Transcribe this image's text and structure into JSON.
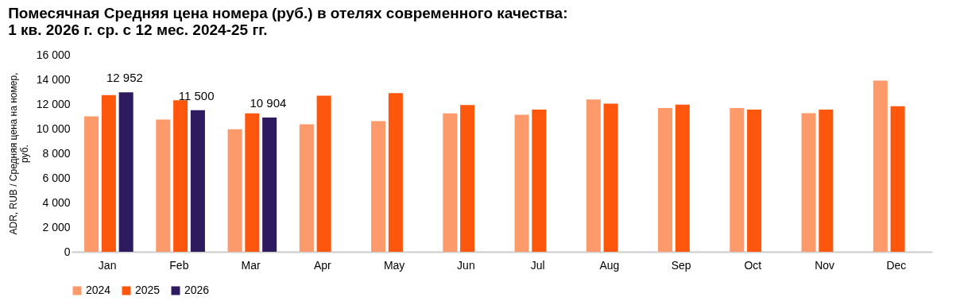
{
  "chart_data": {
    "type": "bar",
    "title": "Помесячная Средняя цена номера (руб.) в отелях современного качества:\n1 кв. 2026 г. ср. с 12 мес. 2024-25 гг.",
    "ylabel": "ADR, RUB / Средняя цена на номер,\nруб.",
    "categories": [
      "Jan",
      "Feb",
      "Mar",
      "Apr",
      "May",
      "Jun",
      "Jul",
      "Aug",
      "Sep",
      "Oct",
      "Nov",
      "Dec"
    ],
    "series": [
      {
        "name": "2024",
        "color": "#fc9a6b",
        "values": [
          11000,
          10750,
          9950,
          10360,
          10620,
          11240,
          11130,
          12370,
          11680,
          11680,
          11260,
          13900
        ]
      },
      {
        "name": "2025",
        "color": "#fd560d",
        "values": [
          12720,
          12300,
          11240,
          12670,
          12880,
          11920,
          11550,
          12030,
          11950,
          11550,
          11550,
          11820
        ]
      },
      {
        "name": "2026",
        "color": "#2e1a5e",
        "values": [
          12952,
          11500,
          10904,
          null,
          null,
          null,
          null,
          null,
          null,
          null,
          null,
          null
        ],
        "value_labels": [
          "12 952",
          "11 500",
          "10 904",
          null,
          null,
          null,
          null,
          null,
          null,
          null,
          null,
          null
        ]
      }
    ],
    "ylim": [
      0,
      16000
    ],
    "yticks": [
      {
        "value": 0,
        "label": "0"
      },
      {
        "value": 2000,
        "label": "2 000"
      },
      {
        "value": 4000,
        "label": "4 000"
      },
      {
        "value": 6000,
        "label": "6 000"
      },
      {
        "value": 8000,
        "label": "8 000"
      },
      {
        "value": 10000,
        "label": "10 000"
      },
      {
        "value": 12000,
        "label": "12 000"
      },
      {
        "value": 14000,
        "label": "14 000"
      },
      {
        "value": 16000,
        "label": "16 000"
      }
    ],
    "grid": false,
    "legend": "bottom"
  }
}
